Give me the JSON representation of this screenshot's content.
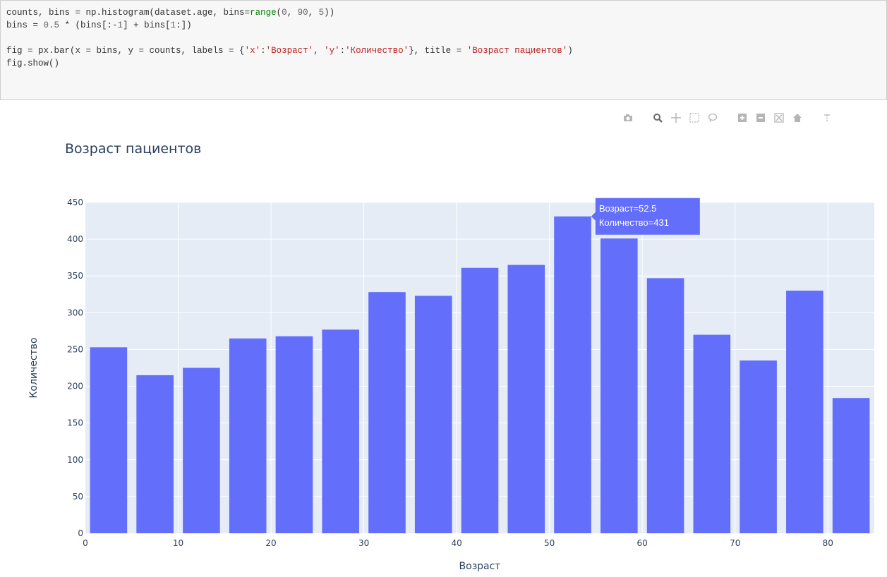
{
  "code_cell": {
    "lines": [
      "counts, bins = np.histogram(dataset.age, bins=range(0, 90, 5))",
      "bins = 0.5 * (bins[:-1] + bins[1:])",
      "",
      "fig = px.bar(x = bins, y = counts, labels = {'x':'Возраст', 'y':'Количество'}, title = 'Возраст пациентов')",
      "fig.show()"
    ]
  },
  "modebar": {
    "icons": [
      "camera-icon",
      "zoom-icon",
      "pan-icon",
      "box-select-icon",
      "lasso-icon",
      "zoom-in-icon",
      "zoom-out-icon",
      "autoscale-icon",
      "reset-axes-icon",
      "spike-lines-icon"
    ]
  },
  "tooltip": {
    "line1": "Возраст=52.5",
    "line2": "Количество=431"
  },
  "colors": {
    "bar": "#636efa",
    "plot_bg": "#e5ecf6",
    "grid": "#ffffff"
  },
  "chart_data": {
    "type": "bar",
    "title": "Возраст пациентов",
    "xlabel": "Возраст",
    "ylabel": "Количество",
    "x": [
      2.5,
      7.5,
      12.5,
      17.5,
      22.5,
      27.5,
      32.5,
      37.5,
      42.5,
      47.5,
      52.5,
      57.5,
      62.5,
      67.5,
      72.5,
      77.5,
      82.5
    ],
    "values": [
      253,
      215,
      225,
      265,
      268,
      277,
      328,
      323,
      361,
      365,
      431,
      401,
      347,
      270,
      235,
      330,
      184
    ],
    "xlim": [
      0,
      85
    ],
    "ylim": [
      0,
      450
    ],
    "xticks": [
      0,
      10,
      20,
      30,
      40,
      50,
      60,
      70,
      80
    ],
    "yticks": [
      0,
      50,
      100,
      150,
      200,
      250,
      300,
      350,
      400,
      450
    ],
    "grid": true
  }
}
